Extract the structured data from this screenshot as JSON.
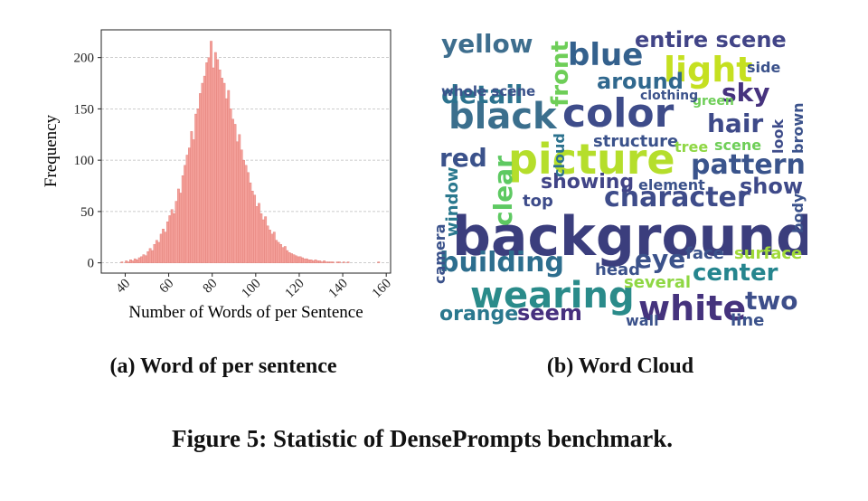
{
  "chart_data": {
    "type": "histogram",
    "xlabel": "Number of Words of per Sentence",
    "ylabel": "Frequency",
    "bins": [
      38,
      39,
      40,
      41,
      42,
      43,
      44,
      45,
      46,
      47,
      48,
      49,
      50,
      51,
      52,
      53,
      54,
      55,
      56,
      57,
      58,
      59,
      60,
      61,
      62,
      63,
      64,
      65,
      66,
      67,
      68,
      69,
      70,
      71,
      72,
      73,
      74,
      75,
      76,
      77,
      78,
      79,
      80,
      81,
      82,
      83,
      84,
      85,
      86,
      87,
      88,
      89,
      90,
      91,
      92,
      93,
      94,
      95,
      96,
      97,
      98,
      99,
      100,
      101,
      102,
      103,
      104,
      105,
      106,
      107,
      108,
      109,
      110,
      111,
      112,
      113,
      114,
      115,
      116,
      117,
      118,
      119,
      120,
      121,
      122,
      123,
      124,
      125,
      126,
      127,
      128,
      129,
      130,
      131,
      132,
      133,
      134,
      135,
      136,
      137,
      138,
      139,
      140,
      141,
      142,
      143,
      144,
      145,
      146,
      147,
      148,
      149,
      150,
      151,
      152,
      153,
      154,
      155,
      156,
      157,
      158
    ],
    "values": [
      1,
      0,
      2,
      1,
      3,
      2,
      4,
      3,
      5,
      6,
      8,
      7,
      11,
      14,
      12,
      18,
      22,
      20,
      28,
      33,
      30,
      40,
      46,
      52,
      48,
      60,
      72,
      68,
      85,
      95,
      105,
      112,
      128,
      120,
      145,
      150,
      165,
      175,
      182,
      195,
      200,
      216,
      190,
      205,
      198,
      188,
      180,
      175,
      160,
      168,
      150,
      140,
      135,
      118,
      125,
      110,
      100,
      95,
      88,
      78,
      70,
      66,
      55,
      58,
      48,
      42,
      45,
      36,
      32,
      28,
      30,
      22,
      20,
      18,
      15,
      16,
      12,
      10,
      9,
      8,
      7,
      6,
      6,
      5,
      4,
      4,
      3,
      3,
      2,
      3,
      2,
      2,
      1,
      2,
      1,
      1,
      1,
      1,
      0,
      1,
      1,
      0,
      1,
      0,
      1,
      0,
      0,
      0,
      0,
      0,
      0,
      0,
      0,
      0,
      0,
      0,
      0,
      0,
      1,
      0
    ],
    "color": "#f4a09a",
    "edgecolor": "#e07b74",
    "xlim": [
      29,
      162
    ],
    "xticks": [
      40,
      60,
      80,
      100,
      120,
      140,
      160
    ],
    "ylim": [
      -10,
      227
    ],
    "yticks": [
      0,
      50,
      100,
      150,
      200
    ],
    "grid": true
  },
  "word_cloud": {
    "words": [
      "background",
      "picture",
      "color",
      "black",
      "wearing",
      "white",
      "character",
      "building",
      "pattern",
      "blue",
      "light",
      "entire scene",
      "detail",
      "yellow",
      "red",
      "eye",
      "center",
      "hair",
      "sky",
      "show",
      "two",
      "orange",
      "seem",
      "around",
      "front",
      "clear",
      "window",
      "camera",
      "head",
      "face",
      "surface",
      "several",
      "line",
      "wall",
      "showing",
      "top",
      "element",
      "structure",
      "tree",
      "scene",
      "look",
      "brown",
      "body",
      "whole scene",
      "green",
      "side",
      "clothing",
      "cloud"
    ]
  },
  "captions": {
    "a": "(a) Word of per sentence",
    "b": "(b) Word Cloud",
    "figure": "Figure 5: Statistic of DensePrompts benchmark."
  }
}
